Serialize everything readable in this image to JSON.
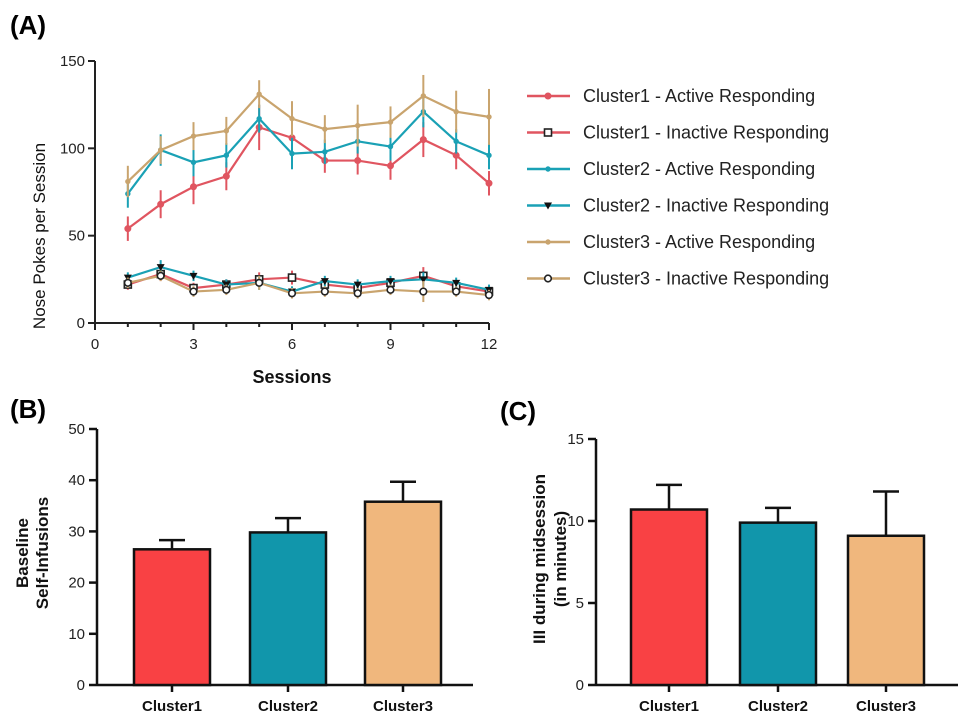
{
  "chart_data": [
    {
      "panel": "(A)",
      "type": "line",
      "xlabel": "Sessions",
      "ylabel": "Nose Pokes per Session",
      "xlim": [
        0,
        12
      ],
      "ylim": [
        0,
        150
      ],
      "xticks": [
        0,
        3,
        6,
        9,
        12
      ],
      "yticks": [
        0,
        50,
        100,
        150
      ],
      "x": [
        1,
        2,
        3,
        4,
        5,
        6,
        7,
        8,
        9,
        10,
        11,
        12
      ],
      "legend_position": "right",
      "series": [
        {
          "name": "Cluster1 - Active Responding",
          "color": "#e05560",
          "marker": "circle",
          "values": [
            54,
            68,
            78,
            84,
            112,
            106,
            93,
            93,
            90,
            105,
            96,
            80
          ],
          "errors": [
            7,
            8,
            10,
            8,
            13,
            10,
            7,
            8,
            8,
            10,
            8,
            7
          ]
        },
        {
          "name": "Cluster1 - Inactive Responding",
          "color": "#e05560",
          "marker": "square",
          "values": [
            22,
            28,
            20,
            22,
            25,
            26,
            22,
            20,
            23,
            27,
            21,
            18
          ],
          "errors": [
            3,
            4,
            3,
            3,
            4,
            4,
            3,
            3,
            3,
            5,
            3,
            3
          ]
        },
        {
          "name": "Cluster2 - Active Responding",
          "color": "#1aa1b5",
          "marker": "dot",
          "values": [
            74,
            99,
            92,
            96,
            117,
            97,
            98,
            104,
            101,
            121,
            104,
            96
          ],
          "errors": [
            8,
            9,
            8,
            7,
            8,
            9,
            7,
            7,
            8,
            9,
            7,
            8
          ]
        },
        {
          "name": "Cluster2 - Inactive Responding",
          "color": "#1aa1b5",
          "marker": "triangle",
          "values": [
            26,
            32,
            27,
            22,
            23,
            18,
            24,
            22,
            24,
            25,
            23,
            19
          ],
          "errors": [
            3,
            4,
            3,
            3,
            4,
            3,
            3,
            3,
            3,
            4,
            3,
            3
          ]
        },
        {
          "name": "Cluster3 - Active Responding",
          "color": "#c9a46e",
          "marker": "dot",
          "values": [
            81,
            99,
            107,
            110,
            131,
            117,
            111,
            113,
            115,
            130,
            121,
            118
          ],
          "errors": [
            9,
            8,
            8,
            8,
            8,
            10,
            8,
            12,
            9,
            12,
            12,
            16
          ]
        },
        {
          "name": "Cluster3 - Inactive Responding",
          "color": "#c9a46e",
          "marker": "circle-open",
          "values": [
            23,
            27,
            18,
            19,
            23,
            17,
            18,
            17,
            19,
            18,
            18,
            16
          ],
          "errors": [
            3,
            3,
            3,
            3,
            4,
            3,
            3,
            3,
            3,
            6,
            3,
            3
          ]
        }
      ]
    },
    {
      "panel": "(B)",
      "type": "bar",
      "ylabel_line1": "Baseline",
      "ylabel_line2": "Self-Infusions",
      "xlabel": "",
      "ylim": [
        0,
        50
      ],
      "yticks": [
        0,
        10,
        20,
        30,
        40,
        50
      ],
      "categories": [
        "Cluster1",
        "Cluster2",
        "Cluster3"
      ],
      "values": [
        26.5,
        29.8,
        35.8
      ],
      "errors": [
        1.8,
        2.8,
        3.9
      ],
      "colors": [
        "#f94144",
        "#1196ab",
        "#f0b77d"
      ]
    },
    {
      "panel": "(C)",
      "type": "bar",
      "ylabel_line1": "III during midsession",
      "ylabel_line2": "(in minutes)",
      "xlabel": "",
      "ylim": [
        0,
        15
      ],
      "yticks": [
        0,
        5,
        10,
        15
      ],
      "categories": [
        "Cluster1",
        "Cluster2",
        "Cluster3"
      ],
      "values": [
        10.7,
        9.9,
        9.1
      ],
      "errors": [
        1.5,
        0.9,
        2.7
      ],
      "colors": [
        "#f94144",
        "#1196ab",
        "#f0b77d"
      ]
    }
  ]
}
